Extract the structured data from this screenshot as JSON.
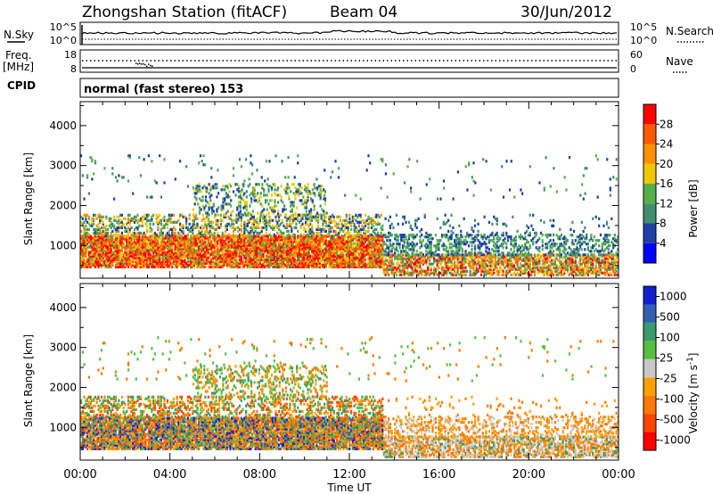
{
  "header": {
    "title": "Zhongshan Station (fitACF)",
    "beam": "Beam 04",
    "date": "30/Jun/2012"
  },
  "left_labels": {
    "nsky": "N.Sky",
    "freq": "Freq.",
    "mhz": "[MHz]",
    "cpid": "CPID"
  },
  "right_labels": {
    "nsearch": "N.Search",
    "nave": "Nave"
  },
  "ticks": {
    "nsky_top": "10^5",
    "nsky_bottom": "10^0",
    "freq_top": "18",
    "freq_bottom": "8",
    "nave_top": "60",
    "nave_bottom": "0"
  },
  "cpid_text": "normal (fast stereo) 153",
  "colors": {
    "power": [
      "#0000ff",
      "#1f3fa8",
      "#3f8f6f",
      "#55b04a",
      "#f0c800",
      "#ff9000",
      "#ff5a00",
      "#ff0000"
    ],
    "velocity": [
      "#ff0000",
      "#ff4400",
      "#ff7a00",
      "#ffa000",
      "#c8c8c8",
      "#55c040",
      "#3a9a6a",
      "#3060b0",
      "#1020d0"
    ]
  },
  "chart_data": [
    {
      "type": "heatmap",
      "name": "power",
      "ylabel": "Slant Range [km]",
      "xlabel": "",
      "ylim": [
        180,
        4600
      ],
      "yticks": [
        "1000",
        "2000",
        "3000",
        "4000"
      ],
      "ytick_values": [
        1000,
        2000,
        3000,
        4000
      ],
      "xlim": [
        0,
        24
      ],
      "xticks": [
        0,
        4,
        8,
        12,
        16,
        20,
        24
      ],
      "colorbar": {
        "label": "Power [dB]",
        "labels": [
          "4",
          "8",
          "12",
          "16",
          "20",
          "24",
          "28"
        ]
      }
    },
    {
      "type": "heatmap",
      "name": "velocity",
      "ylabel": "Slant Range [km]",
      "xlabel": "Time UT",
      "ylim": [
        180,
        4600
      ],
      "yticks": [
        "1000",
        "2000",
        "3000",
        "4000"
      ],
      "ytick_values": [
        1000,
        2000,
        3000,
        4000
      ],
      "xlim": [
        0,
        24
      ],
      "xticks": [
        0,
        4,
        8,
        12,
        16,
        20,
        24
      ],
      "xtick_labels": [
        "00:00",
        "04:00",
        "08:00",
        "12:00",
        "16:00",
        "20:00",
        "00:00"
      ],
      "colorbar": {
        "label": "Velocity [m s^-1]",
        "labels": [
          "1000",
          "500",
          "100",
          "25",
          "-25",
          "-100",
          "-500",
          "-1000"
        ]
      }
    }
  ]
}
